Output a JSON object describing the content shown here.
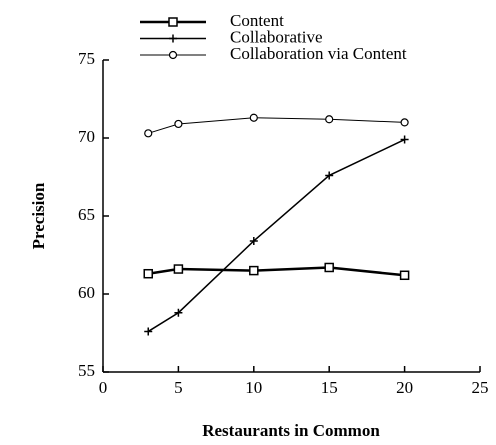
{
  "chart_data": {
    "type": "line",
    "x_label": "Restaurants in Common",
    "y_label": "Precision",
    "x": [
      3,
      5,
      10,
      15,
      20
    ],
    "series": [
      {
        "name": "Content",
        "color": "#000000",
        "marker": "square",
        "values": [
          61.3,
          61.6,
          61.5,
          61.7,
          61.2
        ]
      },
      {
        "name": "Collaborative",
        "color": "#000000",
        "marker": "plus",
        "values": [
          57.6,
          58.8,
          63.4,
          67.6,
          69.9
        ]
      },
      {
        "name": "Collaboration via Content",
        "color": "#000000",
        "marker": "circle",
        "values": [
          70.3,
          70.9,
          71.3,
          71.2,
          71.0
        ]
      }
    ],
    "xlim": [
      0,
      25
    ],
    "xticks": [
      0,
      5,
      10,
      15,
      20,
      25
    ],
    "ylim": [
      55,
      75
    ],
    "yticks": [
      55,
      60,
      65,
      70,
      75
    ],
    "grid": false,
    "legend": "top-left"
  }
}
